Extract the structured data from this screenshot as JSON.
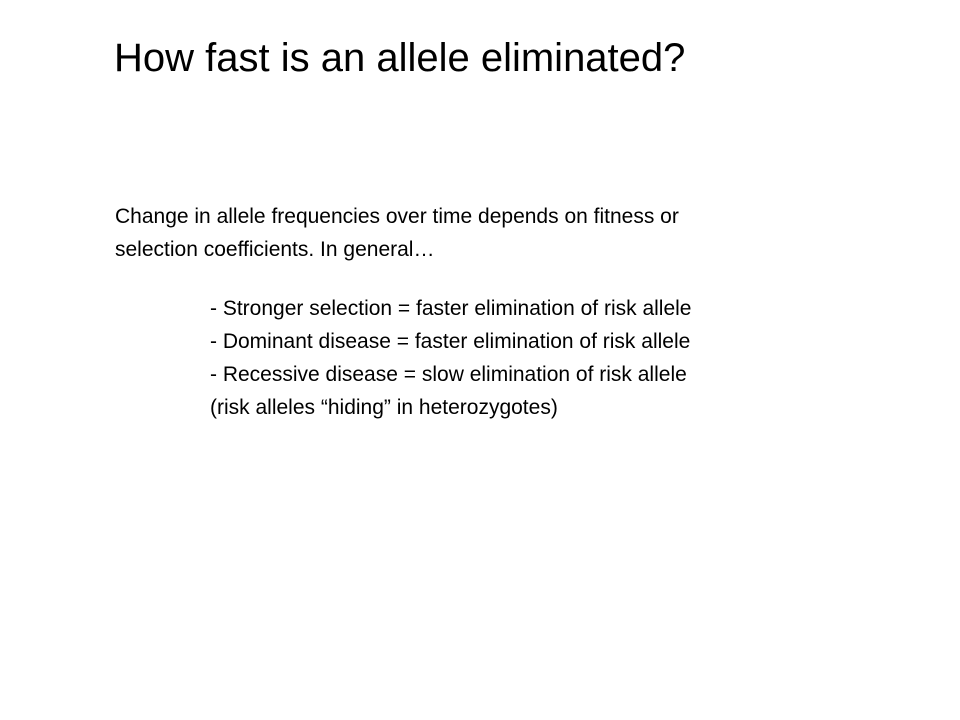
{
  "slide": {
    "title": "How fast is an allele eliminated?",
    "intro_lines": [
      "Change in allele frequencies over time depends on fitness or",
      "selection coefficients.  In general…"
    ],
    "bullets": [
      "- Stronger selection = faster elimination of risk allele",
      "- Dominant disease = faster elimination of risk allele",
      "- Recessive disease = slow elimination of risk allele",
      "(risk alleles “hiding” in heterozygotes)"
    ]
  }
}
